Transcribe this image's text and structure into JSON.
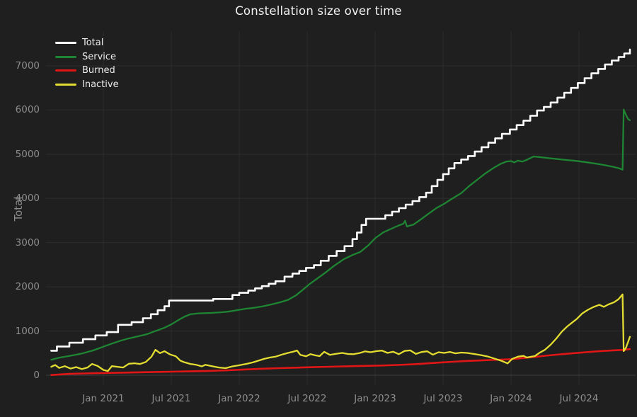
{
  "title": "Constellation size over time",
  "y_axis": {
    "title": "Total",
    "tick_values": [
      0,
      1000,
      2000,
      3000,
      4000,
      5000,
      6000,
      7000
    ]
  },
  "x_axis": {
    "ticks": [
      {
        "label": "Jan 2021",
        "t": 5
      },
      {
        "label": "Jul 2021",
        "t": 11
      },
      {
        "label": "Jan 2022",
        "t": 17
      },
      {
        "label": "Jul 2022",
        "t": 23
      },
      {
        "label": "Jan 2023",
        "t": 29
      },
      {
        "label": "Jul 2023",
        "t": 35
      },
      {
        "label": "Jan 2024",
        "t": 41
      },
      {
        "label": "Jul 2024",
        "t": 47
      }
    ]
  },
  "colors": {
    "background": "#1f1f1f",
    "grid": "#2d2d2d",
    "zeroline": "#3f3f3f",
    "tick_text": "#8d8d8d",
    "title_text": "#f2f2f2"
  },
  "chart_data": {
    "type": "line",
    "title": "Constellation size over time",
    "xlabel": "",
    "ylabel": "Total",
    "x_unit": "months since Aug 2020 (Jan 2021 = 5)",
    "x_tick_labels": [
      "Jan 2021",
      "Jul 2021",
      "Jan 2022",
      "Jul 2022",
      "Jan 2023",
      "Jul 2023",
      "Jan 2024",
      "Jul 2024"
    ],
    "x_tick_t": [
      5,
      11,
      17,
      23,
      29,
      35,
      41,
      47
    ],
    "ylim": [
      -240,
      7770
    ],
    "xlim_t": [
      -0.1,
      52
    ],
    "grid": true,
    "legend_position": "top-left",
    "series": [
      {
        "name": "Total",
        "color": "#ffffff",
        "width": 2.6,
        "step": true,
        "points": [
          [
            0.4,
            555
          ],
          [
            0.9,
            650
          ],
          [
            2.0,
            735
          ],
          [
            3.2,
            815
          ],
          [
            4.3,
            900
          ],
          [
            5.3,
            975
          ],
          [
            6.3,
            1140
          ],
          [
            7.5,
            1200
          ],
          [
            8.5,
            1290
          ],
          [
            9.2,
            1380
          ],
          [
            9.8,
            1470
          ],
          [
            10.4,
            1560
          ],
          [
            10.8,
            1690
          ],
          [
            14.7,
            1725
          ],
          [
            16.4,
            1815
          ],
          [
            17.0,
            1865
          ],
          [
            17.8,
            1915
          ],
          [
            18.4,
            1965
          ],
          [
            19.0,
            2015
          ],
          [
            19.6,
            2070
          ],
          [
            20.2,
            2125
          ],
          [
            21.0,
            2230
          ],
          [
            21.7,
            2300
          ],
          [
            22.3,
            2360
          ],
          [
            22.9,
            2430
          ],
          [
            23.6,
            2490
          ],
          [
            24.2,
            2590
          ],
          [
            24.9,
            2700
          ],
          [
            25.6,
            2810
          ],
          [
            26.3,
            2920
          ],
          [
            27.0,
            3080
          ],
          [
            27.4,
            3230
          ],
          [
            27.8,
            3400
          ],
          [
            28.2,
            3540
          ],
          [
            29.9,
            3620
          ],
          [
            30.5,
            3700
          ],
          [
            31.1,
            3780
          ],
          [
            31.7,
            3860
          ],
          [
            32.3,
            3940
          ],
          [
            32.9,
            4030
          ],
          [
            33.5,
            4130
          ],
          [
            34.0,
            4280
          ],
          [
            34.5,
            4420
          ],
          [
            35.0,
            4550
          ],
          [
            35.5,
            4680
          ],
          [
            36.0,
            4800
          ],
          [
            36.6,
            4880
          ],
          [
            37.2,
            4960
          ],
          [
            37.8,
            5060
          ],
          [
            38.4,
            5160
          ],
          [
            39.0,
            5260
          ],
          [
            39.6,
            5360
          ],
          [
            40.2,
            5460
          ],
          [
            40.9,
            5560
          ],
          [
            41.5,
            5660
          ],
          [
            42.1,
            5760
          ],
          [
            42.7,
            5870
          ],
          [
            43.3,
            5990
          ],
          [
            43.9,
            6070
          ],
          [
            44.5,
            6170
          ],
          [
            45.1,
            6280
          ],
          [
            45.7,
            6390
          ],
          [
            46.3,
            6500
          ],
          [
            46.9,
            6610
          ],
          [
            47.5,
            6720
          ],
          [
            48.1,
            6830
          ],
          [
            48.7,
            6930
          ],
          [
            49.3,
            7030
          ],
          [
            49.9,
            7120
          ],
          [
            50.5,
            7200
          ],
          [
            51.0,
            7280
          ],
          [
            51.5,
            7370
          ]
        ]
      },
      {
        "name": "Service",
        "color": "#1e8533",
        "width": 2.3,
        "step": false,
        "points": [
          [
            0.4,
            350
          ],
          [
            1.1,
            395
          ],
          [
            2.1,
            440
          ],
          [
            3.1,
            490
          ],
          [
            4.1,
            560
          ],
          [
            5.0,
            645
          ],
          [
            5.8,
            720
          ],
          [
            6.5,
            780
          ],
          [
            7.2,
            830
          ],
          [
            7.8,
            865
          ],
          [
            8.8,
            925
          ],
          [
            9.6,
            1000
          ],
          [
            10.4,
            1075
          ],
          [
            11.0,
            1150
          ],
          [
            11.6,
            1245
          ],
          [
            12.2,
            1330
          ],
          [
            12.7,
            1380
          ],
          [
            13.4,
            1400
          ],
          [
            14.5,
            1410
          ],
          [
            15.5,
            1425
          ],
          [
            16.2,
            1445
          ],
          [
            17.0,
            1480
          ],
          [
            17.6,
            1505
          ],
          [
            18.3,
            1525
          ],
          [
            19.1,
            1560
          ],
          [
            19.9,
            1605
          ],
          [
            20.6,
            1650
          ],
          [
            21.3,
            1705
          ],
          [
            22.0,
            1805
          ],
          [
            22.6,
            1930
          ],
          [
            23.2,
            2060
          ],
          [
            23.9,
            2190
          ],
          [
            24.6,
            2320
          ],
          [
            25.4,
            2480
          ],
          [
            26.2,
            2620
          ],
          [
            27.0,
            2720
          ],
          [
            27.7,
            2790
          ],
          [
            28.4,
            2940
          ],
          [
            29.0,
            3100
          ],
          [
            29.7,
            3230
          ],
          [
            30.3,
            3300
          ],
          [
            31.0,
            3380
          ],
          [
            31.5,
            3430
          ],
          [
            31.65,
            3495
          ],
          [
            31.8,
            3365
          ],
          [
            32.4,
            3410
          ],
          [
            33.0,
            3520
          ],
          [
            33.7,
            3650
          ],
          [
            34.4,
            3780
          ],
          [
            35.1,
            3880
          ],
          [
            35.8,
            3995
          ],
          [
            36.6,
            4120
          ],
          [
            37.3,
            4280
          ],
          [
            38.0,
            4420
          ],
          [
            38.7,
            4560
          ],
          [
            39.4,
            4680
          ],
          [
            40.1,
            4785
          ],
          [
            40.6,
            4835
          ],
          [
            41.0,
            4845
          ],
          [
            41.3,
            4815
          ],
          [
            41.6,
            4855
          ],
          [
            42.0,
            4835
          ],
          [
            42.4,
            4875
          ],
          [
            43.0,
            4950
          ],
          [
            43.7,
            4930
          ],
          [
            44.4,
            4910
          ],
          [
            45.1,
            4890
          ],
          [
            45.9,
            4870
          ],
          [
            46.7,
            4850
          ],
          [
            47.5,
            4825
          ],
          [
            48.3,
            4795
          ],
          [
            49.1,
            4760
          ],
          [
            49.9,
            4720
          ],
          [
            50.5,
            4685
          ],
          [
            50.85,
            4650
          ],
          [
            50.95,
            6010
          ],
          [
            51.15,
            5890
          ],
          [
            51.35,
            5790
          ],
          [
            51.5,
            5770
          ]
        ]
      },
      {
        "name": "Burned",
        "color": "#e01515",
        "width": 2.6,
        "step": false,
        "points": [
          [
            0.4,
            5
          ],
          [
            2,
            30
          ],
          [
            4,
            45
          ],
          [
            6,
            55
          ],
          [
            8,
            65
          ],
          [
            10,
            75
          ],
          [
            12,
            85
          ],
          [
            14,
            95
          ],
          [
            16,
            112
          ],
          [
            17.5,
            130
          ],
          [
            19,
            148
          ],
          [
            20.5,
            160
          ],
          [
            22,
            172
          ],
          [
            23.5,
            183
          ],
          [
            25,
            193
          ],
          [
            26.5,
            202
          ],
          [
            28,
            212
          ],
          [
            29.5,
            220
          ],
          [
            31,
            233
          ],
          [
            32.5,
            250
          ],
          [
            34,
            275
          ],
          [
            35.5,
            300
          ],
          [
            37,
            322
          ],
          [
            38.5,
            338
          ],
          [
            40,
            352
          ],
          [
            41,
            362
          ],
          [
            42,
            388
          ],
          [
            43,
            412
          ],
          [
            44,
            440
          ],
          [
            45,
            465
          ],
          [
            46,
            487
          ],
          [
            47,
            507
          ],
          [
            48,
            528
          ],
          [
            49,
            548
          ],
          [
            50,
            562
          ],
          [
            50.8,
            572
          ],
          [
            51.15,
            580
          ],
          [
            51.5,
            592
          ]
        ]
      },
      {
        "name": "Inactive",
        "color": "#e3dd31",
        "width": 2.3,
        "step": false,
        "points": [
          [
            0.4,
            190
          ],
          [
            0.75,
            230
          ],
          [
            1.1,
            165
          ],
          [
            1.6,
            205
          ],
          [
            2.1,
            150
          ],
          [
            2.6,
            185
          ],
          [
            3.1,
            140
          ],
          [
            3.6,
            175
          ],
          [
            4.0,
            255
          ],
          [
            4.5,
            210
          ],
          [
            5.0,
            120
          ],
          [
            5.4,
            95
          ],
          [
            5.75,
            205
          ],
          [
            6.25,
            190
          ],
          [
            6.75,
            175
          ],
          [
            7.25,
            260
          ],
          [
            7.75,
            270
          ],
          [
            8.25,
            255
          ],
          [
            8.75,
            300
          ],
          [
            9.25,
            420
          ],
          [
            9.6,
            575
          ],
          [
            10.0,
            500
          ],
          [
            10.4,
            545
          ],
          [
            10.9,
            470
          ],
          [
            11.4,
            430
          ],
          [
            11.8,
            330
          ],
          [
            12.2,
            290
          ],
          [
            12.7,
            255
          ],
          [
            13.2,
            235
          ],
          [
            13.7,
            200
          ],
          [
            14.0,
            235
          ],
          [
            14.6,
            205
          ],
          [
            15.2,
            175
          ],
          [
            15.8,
            160
          ],
          [
            16.4,
            200
          ],
          [
            17.1,
            230
          ],
          [
            17.7,
            260
          ],
          [
            18.2,
            290
          ],
          [
            18.7,
            330
          ],
          [
            19.2,
            370
          ],
          [
            19.7,
            400
          ],
          [
            20.2,
            420
          ],
          [
            20.8,
            470
          ],
          [
            21.3,
            505
          ],
          [
            21.8,
            535
          ],
          [
            22.1,
            560
          ],
          [
            22.4,
            460
          ],
          [
            22.9,
            430
          ],
          [
            23.3,
            478
          ],
          [
            23.7,
            450
          ],
          [
            24.1,
            432
          ],
          [
            24.5,
            530
          ],
          [
            25.0,
            462
          ],
          [
            25.5,
            482
          ],
          [
            26.1,
            505
          ],
          [
            26.6,
            480
          ],
          [
            27.1,
            475
          ],
          [
            27.6,
            500
          ],
          [
            28.1,
            540
          ],
          [
            28.6,
            520
          ],
          [
            29.1,
            545
          ],
          [
            29.6,
            558
          ],
          [
            30.1,
            505
          ],
          [
            30.6,
            532
          ],
          [
            31.1,
            475
          ],
          [
            31.6,
            550
          ],
          [
            32.1,
            562
          ],
          [
            32.6,
            482
          ],
          [
            33.1,
            525
          ],
          [
            33.6,
            542
          ],
          [
            34.1,
            465
          ],
          [
            34.6,
            520
          ],
          [
            35.1,
            505
          ],
          [
            35.6,
            527
          ],
          [
            36.1,
            495
          ],
          [
            36.6,
            512
          ],
          [
            37.1,
            505
          ],
          [
            37.7,
            482
          ],
          [
            38.4,
            452
          ],
          [
            39.0,
            420
          ],
          [
            39.6,
            372
          ],
          [
            40.2,
            322
          ],
          [
            40.7,
            268
          ],
          [
            41.1,
            370
          ],
          [
            41.6,
            420
          ],
          [
            42.1,
            437
          ],
          [
            42.4,
            400
          ],
          [
            42.8,
            420
          ],
          [
            43.1,
            432
          ],
          [
            43.5,
            505
          ],
          [
            44.0,
            577
          ],
          [
            44.5,
            690
          ],
          [
            45.0,
            832
          ],
          [
            45.5,
            990
          ],
          [
            46.0,
            1112
          ],
          [
            46.5,
            1212
          ],
          [
            46.8,
            1272
          ],
          [
            47.3,
            1400
          ],
          [
            47.8,
            1482
          ],
          [
            48.3,
            1545
          ],
          [
            48.8,
            1592
          ],
          [
            49.2,
            1548
          ],
          [
            49.6,
            1602
          ],
          [
            50.1,
            1652
          ],
          [
            50.5,
            1722
          ],
          [
            50.85,
            1830
          ],
          [
            50.95,
            545
          ],
          [
            51.15,
            622
          ],
          [
            51.35,
            762
          ],
          [
            51.5,
            870
          ]
        ]
      }
    ]
  }
}
